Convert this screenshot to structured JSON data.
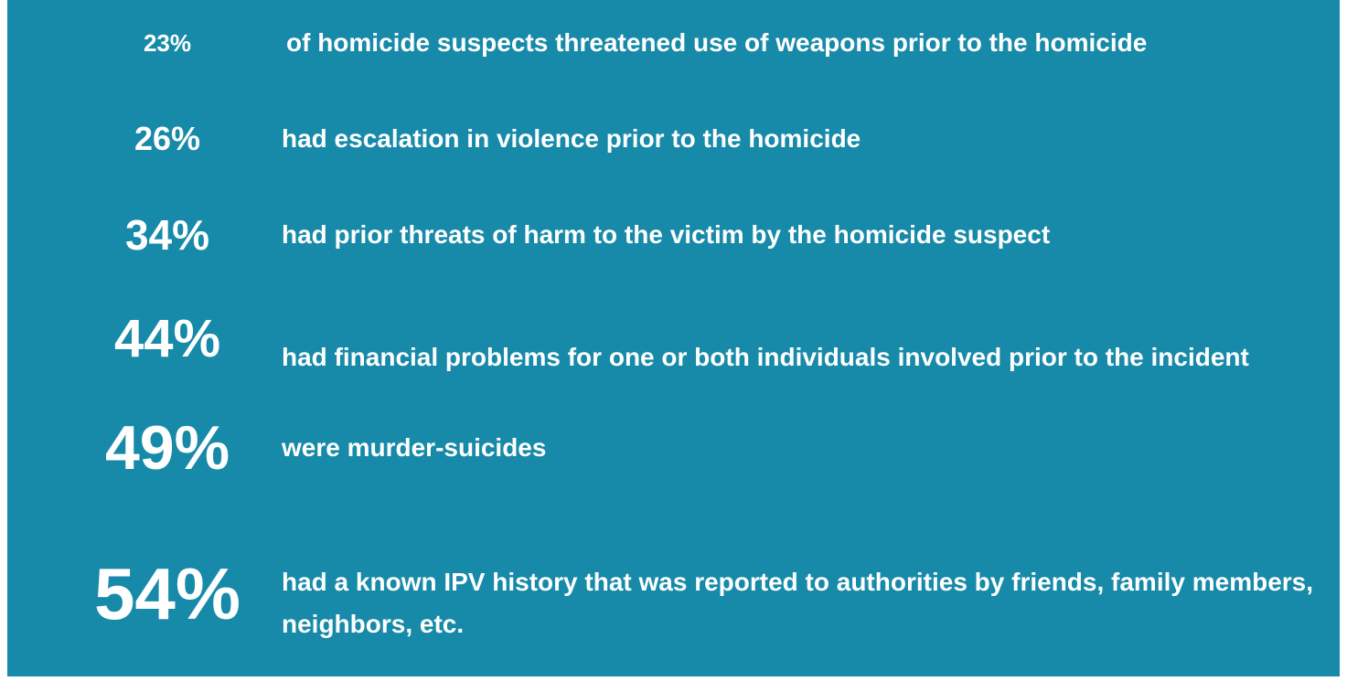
{
  "items": [
    {
      "stat": "23%",
      "text": "of homicide suspects threatened use of weapons prior to the homicide"
    },
    {
      "stat": "26%",
      "text": "had escalation in violence prior to the homicide"
    },
    {
      "stat": "34%",
      "text": "had prior threats of harm to the victim by the homicide suspect"
    },
    {
      "stat": "44%",
      "text": "had financial problems for one or both individuals involved prior to the incident"
    },
    {
      "stat": "49%",
      "text": "were murder-suicides"
    },
    {
      "stat": "54%",
      "text": "had a known IPV history that was reported to authorities by friends, family members, neighbors, etc."
    }
  ]
}
